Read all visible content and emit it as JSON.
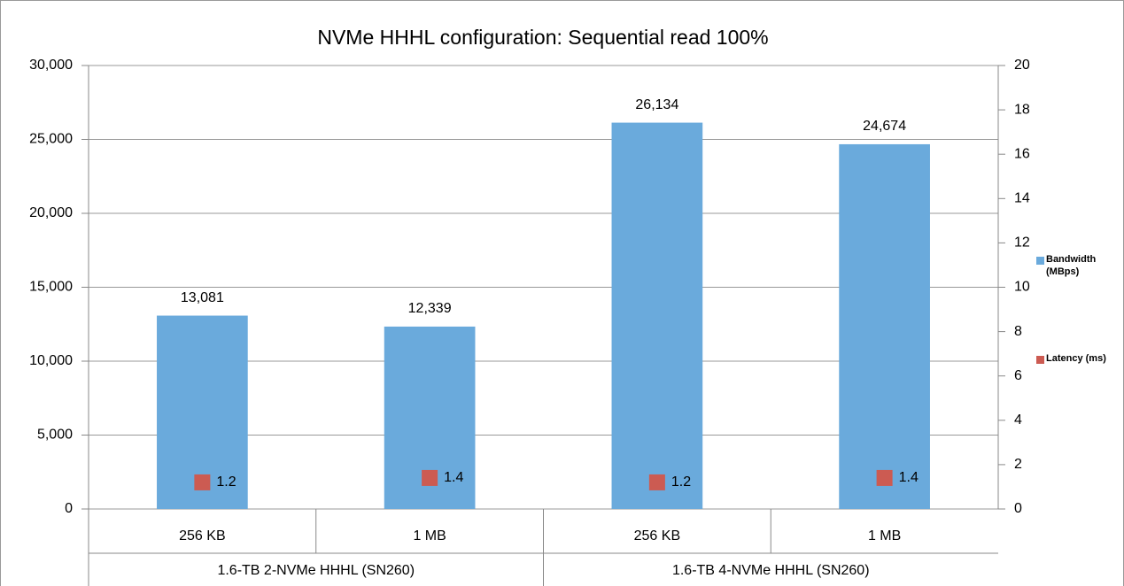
{
  "chart_data": {
    "type": "bar",
    "title": "NVMe HHHL configuration: Sequential read 100%",
    "categories": [
      "256 KB",
      "1 MB",
      "256 KB",
      "1 MB"
    ],
    "group_labels": [
      "1.6-TB 2-NVMe HHHL (SN260)",
      "1.6-TB 4-NVMe HHHL (SN260)"
    ],
    "series": [
      {
        "name": "Bandwidth (MBps)",
        "type": "bar",
        "color": "#6aaadc",
        "values": [
          13081,
          12339,
          26134,
          24674
        ],
        "value_labels": [
          "13,081",
          "12,339",
          "26,134",
          "24,674"
        ]
      },
      {
        "name": "Latency (ms)",
        "type": "scatter",
        "axis": "y2",
        "color": "#cc5b52",
        "values": [
          1.2,
          1.4,
          1.2,
          1.4
        ]
      }
    ],
    "ylim": [
      0,
      30000
    ],
    "yticks": [
      0,
      {
        "value": 5000,
        "label": "5,000"
      },
      {
        "value": 10000,
        "label": "10,000"
      },
      {
        "value": 15000,
        "label": "15,000"
      },
      {
        "value": 20000,
        "label": "20,000"
      },
      {
        "value": 25000,
        "label": "25,000"
      },
      {
        "value": 30000,
        "label": "30,000"
      }
    ],
    "y2lim": [
      0,
      20
    ],
    "y2ticks": [
      0,
      2,
      4,
      6,
      8,
      10,
      12,
      14,
      16,
      18,
      20
    ],
    "grid": true,
    "legend": "right"
  }
}
